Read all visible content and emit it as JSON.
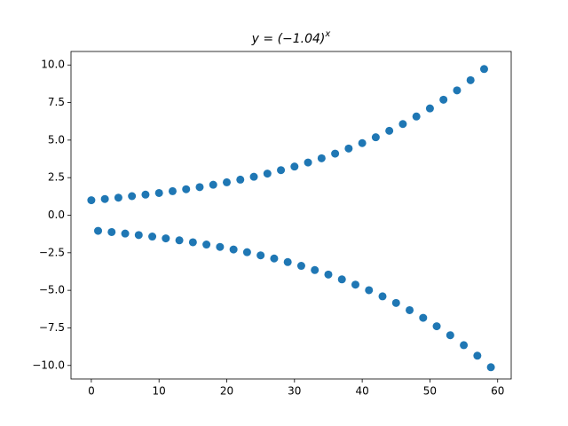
{
  "chart_data": {
    "type": "scatter",
    "title": "y = (−1.04)",
    "title_superscript": "x",
    "color": "#1f77b4",
    "x": [
      0,
      1,
      2,
      3,
      4,
      5,
      6,
      7,
      8,
      9,
      10,
      11,
      12,
      13,
      14,
      15,
      16,
      17,
      18,
      19,
      20,
      21,
      22,
      23,
      24,
      25,
      26,
      27,
      28,
      29,
      30,
      31,
      32,
      33,
      34,
      35,
      36,
      37,
      38,
      39,
      40,
      41,
      42,
      43,
      44,
      45,
      46,
      47,
      48,
      49,
      50,
      51,
      52,
      53,
      54,
      55,
      56,
      57,
      58,
      59
    ],
    "values": [
      1.0,
      -1.04,
      1.08,
      -1.12,
      1.17,
      -1.22,
      1.27,
      -1.32,
      1.37,
      -1.42,
      1.48,
      -1.54,
      1.6,
      -1.67,
      1.73,
      -1.8,
      1.87,
      -1.95,
      2.03,
      -2.11,
      2.19,
      -2.28,
      2.37,
      -2.46,
      2.56,
      -2.67,
      2.77,
      -2.88,
      3.0,
      -3.12,
      3.24,
      -3.37,
      3.51,
      -3.65,
      3.79,
      -3.95,
      4.1,
      -4.27,
      4.44,
      -4.62,
      4.8,
      -4.99,
      5.19,
      -5.4,
      5.62,
      -5.84,
      6.07,
      -6.32,
      6.57,
      -6.83,
      7.11,
      -7.39,
      7.69,
      -7.99,
      8.31,
      -8.65,
      8.99,
      -9.35,
      9.73,
      -10.12
    ],
    "xlim": [
      -3,
      62
    ],
    "ylim": [
      -10.9,
      10.9
    ],
    "xticks": [
      0,
      10,
      20,
      30,
      40,
      50,
      60
    ],
    "yticks": [
      {
        "value": -10,
        "label": "−10.0"
      },
      {
        "value": -7.5,
        "label": "−7.5"
      },
      {
        "value": -5,
        "label": "−5.0"
      },
      {
        "value": -2.5,
        "label": "−2.5"
      },
      {
        "value": 0,
        "label": "0.0"
      },
      {
        "value": 2.5,
        "label": "2.5"
      },
      {
        "value": 5,
        "label": "5.0"
      },
      {
        "value": 7.5,
        "label": "7.5"
      },
      {
        "value": 10,
        "label": "10.0"
      }
    ]
  }
}
